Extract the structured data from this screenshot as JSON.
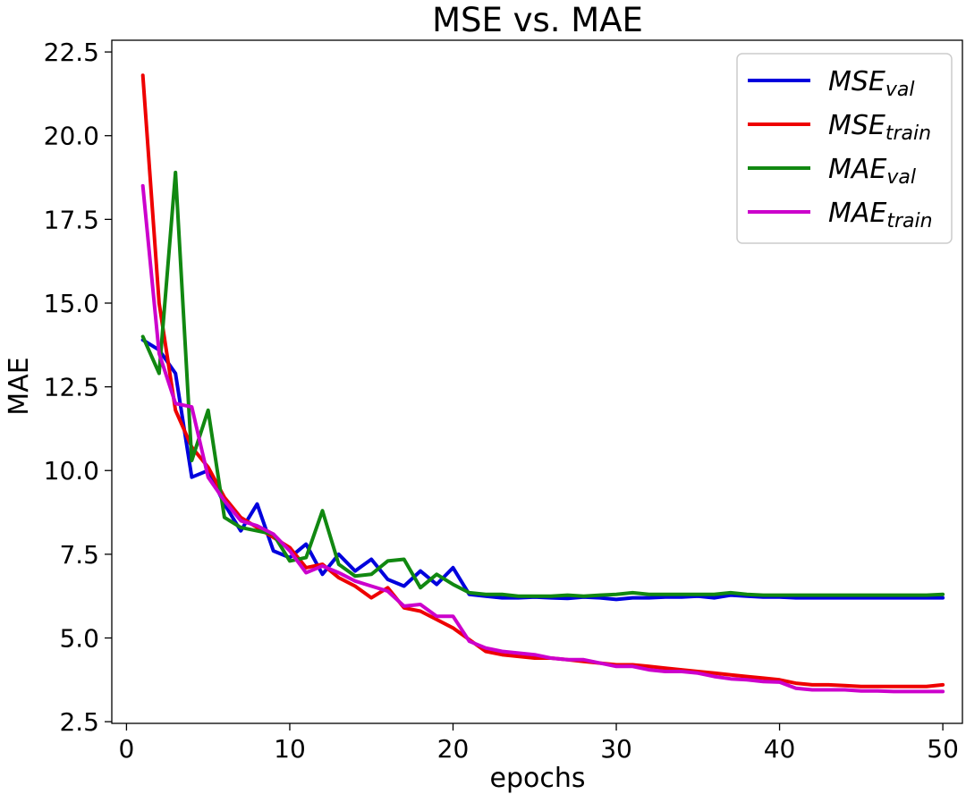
{
  "chart_data": {
    "type": "line",
    "title": "MSE vs. MAE",
    "xlabel": "epochs",
    "ylabel": "MAE",
    "xlim": [
      -0.9,
      51.2
    ],
    "ylim": [
      2.45,
      22.85
    ],
    "xticks": [
      0,
      10,
      20,
      30,
      40,
      50
    ],
    "yticks": [
      2.5,
      5.0,
      7.5,
      10.0,
      12.5,
      15.0,
      17.5,
      20.0,
      22.5
    ],
    "grid": false,
    "legend_position": "top-right",
    "x": [
      1,
      2,
      3,
      4,
      5,
      6,
      7,
      8,
      9,
      10,
      11,
      12,
      13,
      14,
      15,
      16,
      17,
      18,
      19,
      20,
      21,
      22,
      23,
      24,
      25,
      26,
      27,
      28,
      29,
      30,
      31,
      32,
      33,
      34,
      35,
      36,
      37,
      38,
      39,
      40,
      41,
      42,
      43,
      44,
      45,
      46,
      47,
      48,
      49,
      50
    ],
    "series": [
      {
        "name": "MSE",
        "sub": "val",
        "color": "#0000dd",
        "values": [
          13.9,
          13.6,
          12.9,
          9.8,
          10.0,
          9.0,
          8.2,
          9.0,
          7.6,
          7.4,
          7.8,
          6.9,
          7.5,
          7.0,
          7.35,
          6.75,
          6.55,
          7.0,
          6.6,
          7.1,
          6.3,
          6.25,
          6.2,
          6.2,
          6.22,
          6.2,
          6.18,
          6.22,
          6.2,
          6.15,
          6.2,
          6.2,
          6.22,
          6.22,
          6.25,
          6.2,
          6.28,
          6.25,
          6.22,
          6.22,
          6.2,
          6.2,
          6.2,
          6.2,
          6.2,
          6.2,
          6.2,
          6.2,
          6.2,
          6.2
        ]
      },
      {
        "name": "MSE",
        "sub": "train",
        "color": "#ee0000",
        "values": [
          21.8,
          15.0,
          11.8,
          10.7,
          10.1,
          9.2,
          8.6,
          8.3,
          8.0,
          7.7,
          7.1,
          7.2,
          6.8,
          6.55,
          6.2,
          6.5,
          5.9,
          5.8,
          5.55,
          5.3,
          4.95,
          4.6,
          4.5,
          4.45,
          4.4,
          4.4,
          4.35,
          4.3,
          4.25,
          4.2,
          4.2,
          4.15,
          4.1,
          4.05,
          4.0,
          3.95,
          3.9,
          3.85,
          3.8,
          3.75,
          3.65,
          3.6,
          3.6,
          3.58,
          3.55,
          3.55,
          3.55,
          3.55,
          3.55,
          3.6
        ]
      },
      {
        "name": "MAE",
        "sub": "val",
        "color": "#118811",
        "values": [
          14.0,
          12.9,
          18.9,
          10.3,
          11.8,
          8.6,
          8.3,
          8.2,
          8.1,
          7.3,
          7.4,
          8.8,
          7.2,
          6.85,
          6.9,
          7.3,
          7.35,
          6.5,
          6.9,
          6.6,
          6.35,
          6.3,
          6.3,
          6.25,
          6.25,
          6.25,
          6.28,
          6.25,
          6.28,
          6.3,
          6.35,
          6.3,
          6.3,
          6.3,
          6.3,
          6.3,
          6.35,
          6.3,
          6.28,
          6.28,
          6.28,
          6.28,
          6.28,
          6.28,
          6.28,
          6.28,
          6.28,
          6.28,
          6.28,
          6.3
        ]
      },
      {
        "name": "MAE",
        "sub": "train",
        "color": "#cc00cc",
        "values": [
          18.5,
          13.5,
          12.0,
          11.9,
          9.8,
          9.1,
          8.5,
          8.35,
          8.1,
          7.6,
          6.95,
          7.15,
          6.95,
          6.7,
          6.55,
          6.4,
          5.95,
          6.0,
          5.65,
          5.65,
          4.9,
          4.7,
          4.6,
          4.55,
          4.5,
          4.4,
          4.35,
          4.35,
          4.25,
          4.15,
          4.15,
          4.05,
          4.0,
          4.0,
          3.95,
          3.85,
          3.78,
          3.75,
          3.7,
          3.68,
          3.5,
          3.45,
          3.45,
          3.45,
          3.42,
          3.42,
          3.4,
          3.4,
          3.4,
          3.4
        ]
      }
    ]
  }
}
